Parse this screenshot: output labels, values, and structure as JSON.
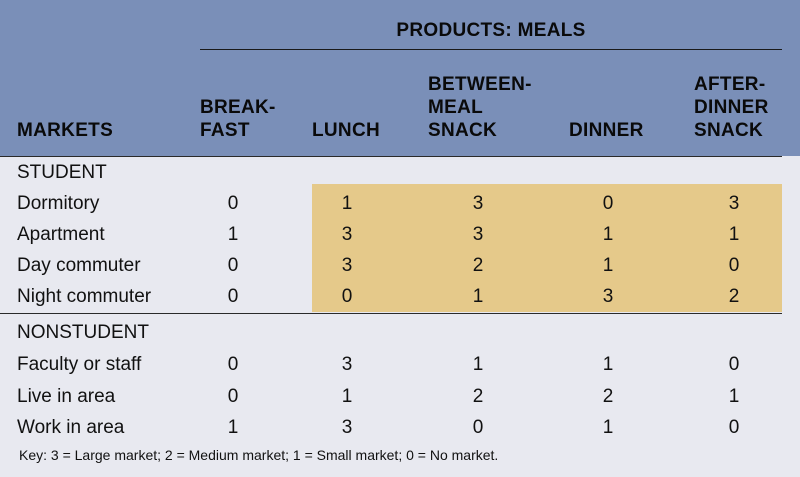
{
  "table": {
    "super_title": "PRODUCTS: MEALS",
    "markets_header": "MARKETS",
    "columns": [
      {
        "lines": [
          "BREAK-",
          "FAST"
        ]
      },
      {
        "lines": [
          "LUNCH"
        ]
      },
      {
        "lines": [
          "BETWEEN-",
          "MEAL",
          "SNACK"
        ]
      },
      {
        "lines": [
          "DINNER"
        ]
      },
      {
        "lines": [
          "AFTER-",
          "DINNER",
          "SNACK"
        ]
      }
    ],
    "sections": [
      {
        "title": "STUDENT",
        "rows": [
          {
            "label": "Dormitory",
            "values": [
              "0",
              "1",
              "3",
              "0",
              "3"
            ]
          },
          {
            "label": "Apartment",
            "values": [
              "1",
              "3",
              "3",
              "1",
              "1"
            ]
          },
          {
            "label": "Day commuter",
            "values": [
              "0",
              "3",
              "2",
              "1",
              "0"
            ]
          },
          {
            "label": "Night commuter",
            "values": [
              "0",
              "0",
              "1",
              "3",
              "2"
            ]
          }
        ]
      },
      {
        "title": "NONSTUDENT",
        "rows": [
          {
            "label": "Faculty or staff",
            "values": [
              "0",
              "3",
              "1",
              "1",
              "0"
            ]
          },
          {
            "label": "Live in area",
            "values": [
              "0",
              "1",
              "2",
              "2",
              "1"
            ]
          },
          {
            "label": "Work in area",
            "values": [
              "1",
              "3",
              "0",
              "1",
              "0"
            ]
          }
        ]
      }
    ],
    "key": "Key: 3 = Large market; 2 = Medium market; 1 = Small market; 0 = No market."
  },
  "colors": {
    "header_bg": "#7a8fb8",
    "body_bg": "#e8e9f0",
    "highlight": "#e5c98a"
  }
}
